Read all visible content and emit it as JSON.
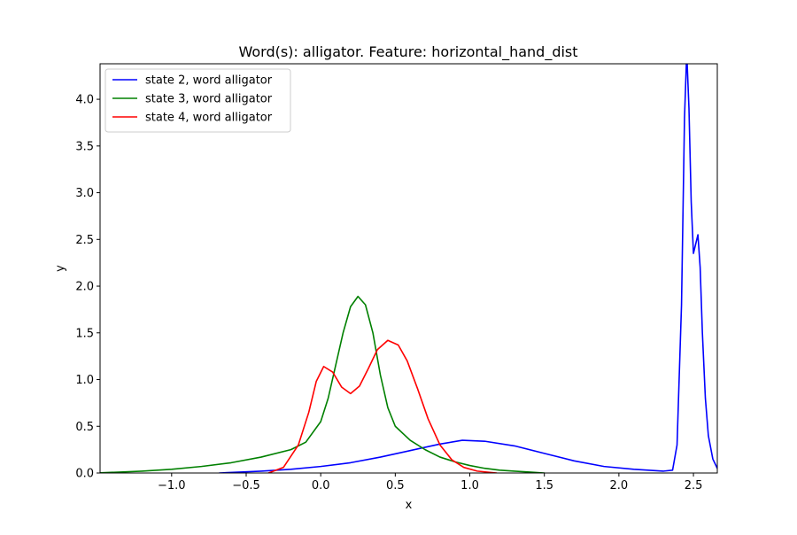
{
  "chart_data": {
    "type": "line",
    "title": "Word(s): alligator. Feature: horizontal_hand_dist",
    "xlabel": "x",
    "ylabel": "y",
    "xlim": [
      -1.48,
      2.66
    ],
    "ylim": [
      0,
      4.38
    ],
    "xticks": [
      -1.0,
      -0.5,
      0.0,
      0.5,
      1.0,
      1.5,
      2.0,
      2.5
    ],
    "xtick_labels": [
      "−1.0",
      "−0.5",
      "0.0",
      "0.5",
      "1.0",
      "1.5",
      "2.0",
      "2.5"
    ],
    "yticks": [
      0.0,
      0.5,
      1.0,
      1.5,
      2.0,
      2.5,
      3.0,
      3.5,
      4.0
    ],
    "ytick_labels": [
      "0.0",
      "0.5",
      "1.0",
      "1.5",
      "2.0",
      "2.5",
      "3.0",
      "3.5",
      "4.0"
    ],
    "grid": false,
    "legend_position": "top-left",
    "series": [
      {
        "name": "state 2, word alligator",
        "color": "#0000ff",
        "points": [
          [
            -0.68,
            0.0
          ],
          [
            -0.4,
            0.02
          ],
          [
            -0.2,
            0.04
          ],
          [
            0.0,
            0.07
          ],
          [
            0.2,
            0.11
          ],
          [
            0.4,
            0.17
          ],
          [
            0.6,
            0.24
          ],
          [
            0.8,
            0.31
          ],
          [
            0.95,
            0.35
          ],
          [
            1.1,
            0.34
          ],
          [
            1.3,
            0.29
          ],
          [
            1.5,
            0.21
          ],
          [
            1.7,
            0.13
          ],
          [
            1.9,
            0.07
          ],
          [
            2.1,
            0.04
          ],
          [
            2.3,
            0.02
          ],
          [
            2.36,
            0.03
          ],
          [
            2.39,
            0.3
          ],
          [
            2.42,
            1.8
          ],
          [
            2.44,
            3.8
          ],
          [
            2.455,
            4.5
          ],
          [
            2.47,
            3.9
          ],
          [
            2.485,
            2.9
          ],
          [
            2.5,
            2.35
          ],
          [
            2.515,
            2.45
          ],
          [
            2.53,
            2.55
          ],
          [
            2.545,
            2.2
          ],
          [
            2.56,
            1.5
          ],
          [
            2.58,
            0.8
          ],
          [
            2.6,
            0.4
          ],
          [
            2.63,
            0.15
          ],
          [
            2.66,
            0.05
          ]
        ]
      },
      {
        "name": "state 3, word alligator",
        "color": "#008000",
        "points": [
          [
            -1.5,
            0.0
          ],
          [
            -1.2,
            0.02
          ],
          [
            -1.0,
            0.04
          ],
          [
            -0.8,
            0.07
          ],
          [
            -0.6,
            0.11
          ],
          [
            -0.4,
            0.17
          ],
          [
            -0.2,
            0.25
          ],
          [
            -0.1,
            0.33
          ],
          [
            0.0,
            0.55
          ],
          [
            0.05,
            0.8
          ],
          [
            0.1,
            1.15
          ],
          [
            0.15,
            1.5
          ],
          [
            0.2,
            1.78
          ],
          [
            0.25,
            1.89
          ],
          [
            0.3,
            1.8
          ],
          [
            0.35,
            1.5
          ],
          [
            0.4,
            1.05
          ],
          [
            0.45,
            0.7
          ],
          [
            0.5,
            0.5
          ],
          [
            0.6,
            0.35
          ],
          [
            0.7,
            0.25
          ],
          [
            0.8,
            0.17
          ],
          [
            0.9,
            0.12
          ],
          [
            1.0,
            0.08
          ],
          [
            1.1,
            0.05
          ],
          [
            1.2,
            0.03
          ],
          [
            1.3,
            0.02
          ],
          [
            1.4,
            0.01
          ],
          [
            1.5,
            0.0
          ]
        ]
      },
      {
        "name": "state 4, word alligator",
        "color": "#ff0000",
        "points": [
          [
            -0.35,
            0.0
          ],
          [
            -0.25,
            0.06
          ],
          [
            -0.15,
            0.3
          ],
          [
            -0.08,
            0.65
          ],
          [
            -0.03,
            0.98
          ],
          [
            0.02,
            1.14
          ],
          [
            0.08,
            1.08
          ],
          [
            0.14,
            0.92
          ],
          [
            0.2,
            0.85
          ],
          [
            0.26,
            0.93
          ],
          [
            0.32,
            1.12
          ],
          [
            0.38,
            1.32
          ],
          [
            0.45,
            1.42
          ],
          [
            0.52,
            1.37
          ],
          [
            0.58,
            1.2
          ],
          [
            0.65,
            0.9
          ],
          [
            0.72,
            0.58
          ],
          [
            0.8,
            0.3
          ],
          [
            0.88,
            0.14
          ],
          [
            0.96,
            0.06
          ],
          [
            1.05,
            0.02
          ],
          [
            1.18,
            0.0
          ]
        ]
      }
    ]
  }
}
